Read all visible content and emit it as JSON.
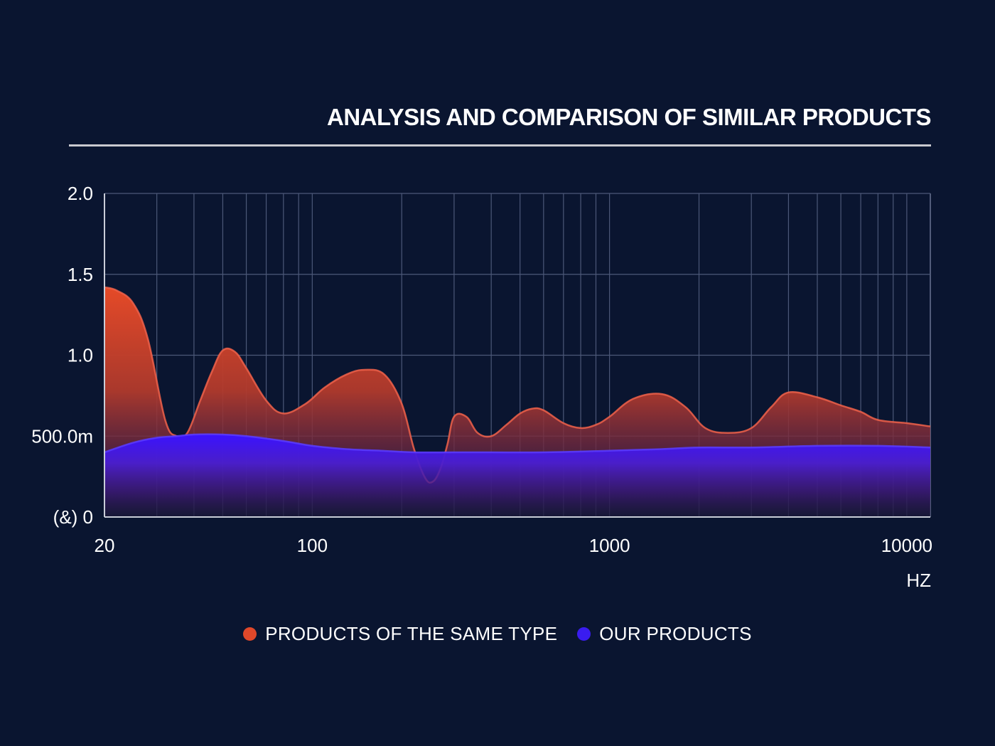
{
  "chart_data": {
    "type": "area",
    "title": "ANALYSIS AND COMPARISON OF SIMILAR PRODUCTS",
    "xlabel": "HZ",
    "ylabel": "",
    "x_scale": "log",
    "xlim": [
      20,
      12000
    ],
    "ylim": [
      0,
      2.0
    ],
    "x_tick_labels": [
      {
        "value": 20,
        "label": "20"
      },
      {
        "value": 100,
        "label": "100"
      },
      {
        "value": 1000,
        "label": "1000"
      },
      {
        "value": 10000,
        "label": "10000"
      }
    ],
    "y_tick_labels": [
      {
        "value": 0,
        "label": "(&) 0"
      },
      {
        "value": 0.5,
        "label": "500.0m"
      },
      {
        "value": 1.0,
        "label": "1.0"
      },
      {
        "value": 1.5,
        "label": "1.5"
      },
      {
        "value": 2.0,
        "label": "2.0"
      }
    ],
    "grid": true,
    "legend_position": "bottom-center",
    "series": [
      {
        "name": "PRODUCTS OF THE SAME TYPE",
        "color": "#e0482a",
        "x": [
          20,
          22,
          25,
          28,
          32,
          35,
          38,
          42,
          46,
          50,
          55,
          60,
          70,
          80,
          95,
          110,
          130,
          150,
          175,
          200,
          220,
          240,
          255,
          270,
          285,
          300,
          330,
          360,
          400,
          450,
          500,
          550,
          600,
          700,
          800,
          900,
          1000,
          1200,
          1500,
          1800,
          2100,
          2500,
          3000,
          3500,
          4000,
          5000,
          6000,
          7000,
          8000,
          10000,
          12000
        ],
        "y": [
          1.42,
          1.4,
          1.32,
          1.1,
          0.6,
          0.5,
          0.52,
          0.72,
          0.9,
          1.03,
          1.02,
          0.92,
          0.72,
          0.64,
          0.7,
          0.8,
          0.88,
          0.91,
          0.88,
          0.7,
          0.42,
          0.24,
          0.22,
          0.3,
          0.45,
          0.62,
          0.62,
          0.52,
          0.5,
          0.57,
          0.64,
          0.67,
          0.66,
          0.58,
          0.55,
          0.57,
          0.62,
          0.73,
          0.76,
          0.68,
          0.55,
          0.52,
          0.55,
          0.68,
          0.77,
          0.74,
          0.69,
          0.65,
          0.6,
          0.58,
          0.56
        ]
      },
      {
        "name": "OUR PRODUCTS",
        "color": "#3a1cf0",
        "x": [
          20,
          25,
          30,
          35,
          40,
          50,
          60,
          80,
          100,
          130,
          170,
          220,
          300,
          400,
          600,
          1000,
          1500,
          2000,
          3000,
          5000,
          8000,
          12000
        ],
        "y": [
          0.4,
          0.46,
          0.49,
          0.5,
          0.51,
          0.51,
          0.5,
          0.47,
          0.44,
          0.42,
          0.41,
          0.4,
          0.4,
          0.4,
          0.4,
          0.41,
          0.42,
          0.43,
          0.43,
          0.44,
          0.44,
          0.43
        ]
      }
    ]
  },
  "legend": {
    "items": [
      {
        "label": "PRODUCTS OF THE SAME TYPE",
        "color": "#e0482a"
      },
      {
        "label": "OUR PRODUCTS",
        "color": "#3a1cf0"
      }
    ]
  }
}
